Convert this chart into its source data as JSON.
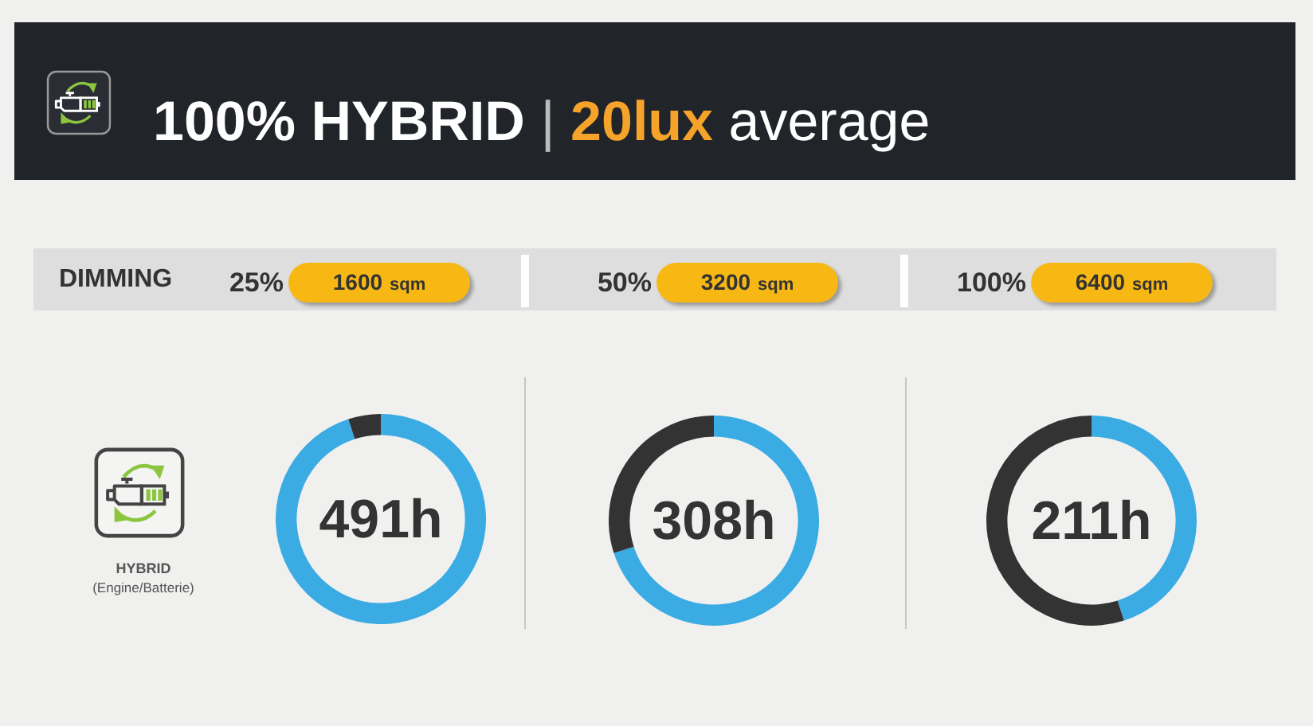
{
  "chart_data": [
    {
      "type": "other",
      "title": "100% HYBRID | 20lux average"
    },
    {
      "type": "other",
      "title": "DIMMING"
    },
    {
      "type": "other",
      "title": "HYBRID",
      "subtitle": "(Engine/Batterie)"
    },
    {
      "type": "donut",
      "title": "25%",
      "subtitle": "1600 sqm",
      "annotations": [
        "491h"
      ],
      "categories": [
        null,
        null
      ],
      "values": [
        95,
        5
      ],
      "colors": [
        "#3aabe3",
        "#333333"
      ]
    },
    {
      "type": "donut",
      "title": "50%",
      "subtitle": "3200 sqm",
      "annotations": [
        "308h"
      ],
      "categories": [
        null,
        null
      ],
      "values": [
        70,
        30
      ],
      "colors": [
        "#3aabe3",
        "#333333"
      ]
    },
    {
      "type": "donut",
      "title": "100%",
      "subtitle": "6400 sqm",
      "annotations": [
        "211h"
      ],
      "categories": [
        null,
        null
      ],
      "values": [
        45,
        55
      ],
      "colors": [
        "#3aabe3",
        "#333333"
      ]
    }
  ]
}
